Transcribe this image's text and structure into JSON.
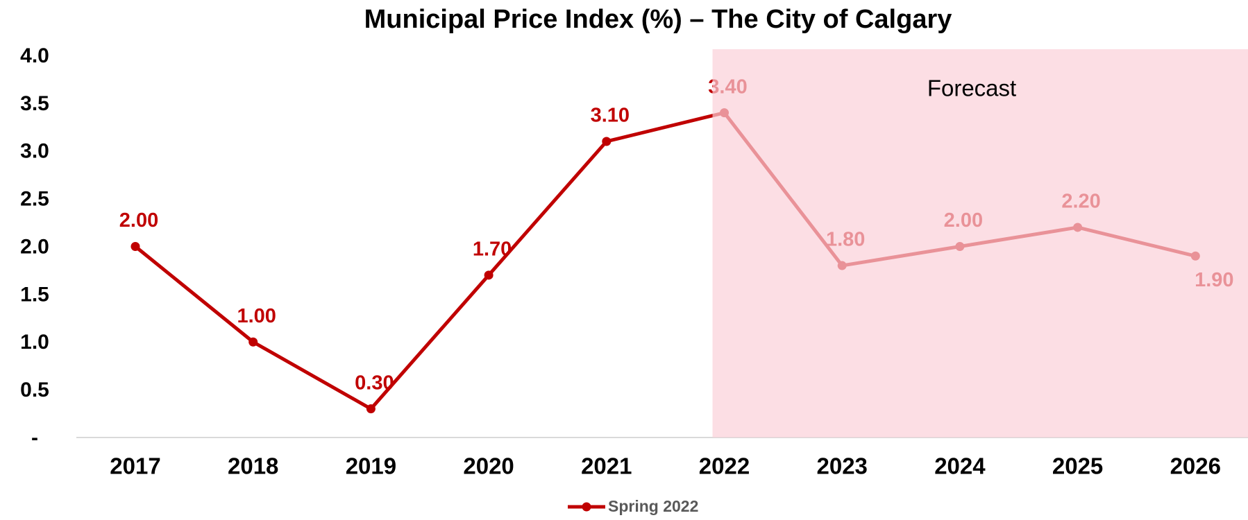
{
  "chart_data": {
    "type": "line",
    "title": "Municipal Price Index (%) – The City of Calgary",
    "categories": [
      "2017",
      "2018",
      "2019",
      "2020",
      "2021",
      "2022",
      "2023",
      "2024",
      "2025",
      "2026"
    ],
    "series": [
      {
        "name": "Spring 2022",
        "color": "#c00000",
        "values": [
          2.0,
          1.0,
          0.3,
          1.7,
          3.1,
          3.4,
          1.8,
          2.0,
          2.2,
          1.9
        ],
        "value_labels": [
          "2.00",
          "1.00",
          "0.30",
          "1.70",
          "3.10",
          "3.40",
          "1.80",
          "2.00",
          "2.20",
          "1.90"
        ]
      }
    ],
    "ylim": [
      0,
      4
    ],
    "yticks": [
      {
        "value": 0,
        "label": "-"
      },
      0.5,
      {
        "value": 1,
        "label": "1.0"
      },
      1.5,
      {
        "value": 2,
        "label": "2.0"
      },
      2.5,
      {
        "value": 3,
        "label": "3.0"
      },
      3.5,
      {
        "value": 4,
        "label": "4.0"
      }
    ],
    "forecast": {
      "label": "Forecast",
      "from": "2022",
      "color": "#fbd0d8"
    },
    "legend": "bottom"
  }
}
